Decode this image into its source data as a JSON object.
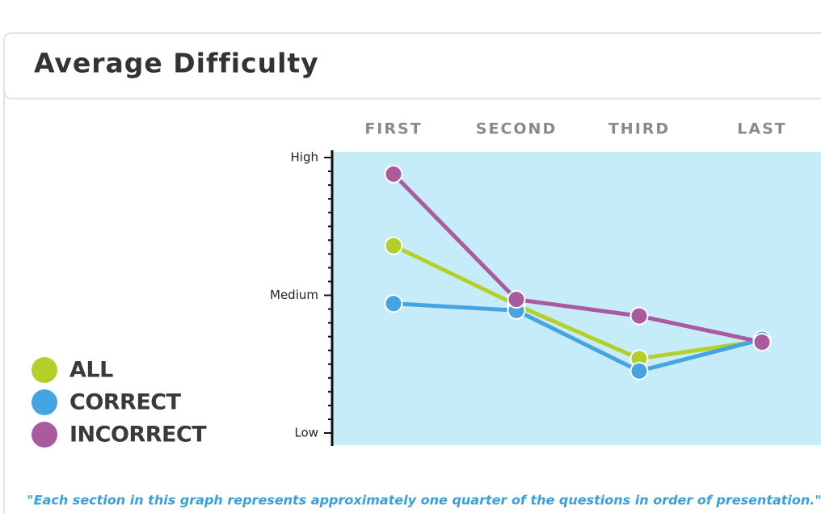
{
  "chart_data": {
    "type": "line",
    "title": "Average Difficulty",
    "categories": [
      "FIRST",
      "SECOND",
      "THIRD",
      "LAST"
    ],
    "series": [
      {
        "name": "ALL",
        "color": "#b5cf2a",
        "values": [
          1.36,
          0.93,
          0.54,
          0.67
        ]
      },
      {
        "name": "CORRECT",
        "color": "#45a5e0",
        "values": [
          0.94,
          0.89,
          0.45,
          0.68
        ]
      },
      {
        "name": "INCORRECT",
        "color": "#a95b9d",
        "values": [
          1.88,
          0.97,
          0.85,
          0.66
        ]
      }
    ],
    "ylim": [
      0,
      2
    ],
    "yticks": [
      {
        "value": 0,
        "label": "Low"
      },
      {
        "value": 1,
        "label": "Medium"
      },
      {
        "value": 2,
        "label": "High"
      }
    ],
    "background_color": "#c6ebf9",
    "note": "\"Each section in this graph represents approximately one quarter of the questions in order of presentation.\""
  }
}
